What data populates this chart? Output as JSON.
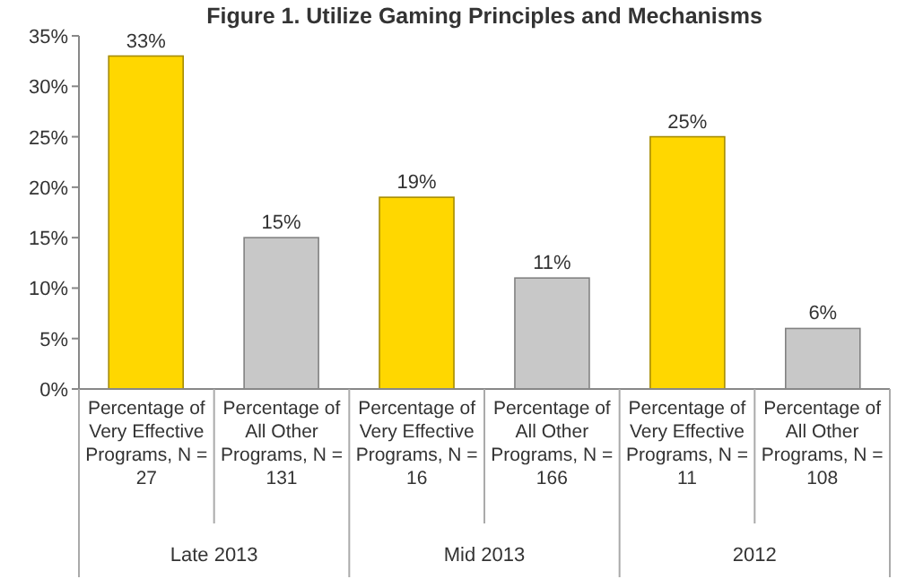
{
  "chart_data": {
    "type": "bar",
    "title": "Figure 1. Utilize Gaming Principles and Mechanisms",
    "categories": [
      "Percentage of Very Effective Programs, N = 27",
      "Percentage of All Other Programs, N = 131",
      "Percentage of Very Effective Programs, N = 16",
      "Percentage of All Other Programs, N = 166",
      "Percentage of Very Effective Programs, N = 11",
      "Percentage of All Other Programs, N = 108"
    ],
    "values": [
      33,
      15,
      19,
      11,
      25,
      6
    ],
    "colors": [
      "#ffd700",
      "#c8c8c8",
      "#ffd700",
      "#c8c8c8",
      "#ffd700",
      "#c8c8c8"
    ],
    "value_labels": [
      "33%",
      "15%",
      "19%",
      "11%",
      "25%",
      "6%"
    ],
    "ylim": [
      0,
      35
    ],
    "yticks": [
      {
        "value": 0,
        "label": "0%"
      },
      {
        "value": 5,
        "label": "5%"
      },
      {
        "value": 10,
        "label": "10%"
      },
      {
        "value": 15,
        "label": "15%"
      },
      {
        "value": 20,
        "label": "20%"
      },
      {
        "value": 25,
        "label": "25%"
      },
      {
        "value": 30,
        "label": "30%"
      },
      {
        "value": 35,
        "label": "35%"
      }
    ],
    "annotations": [
      "Late 2013",
      "Mid 2013",
      "2012"
    ]
  }
}
